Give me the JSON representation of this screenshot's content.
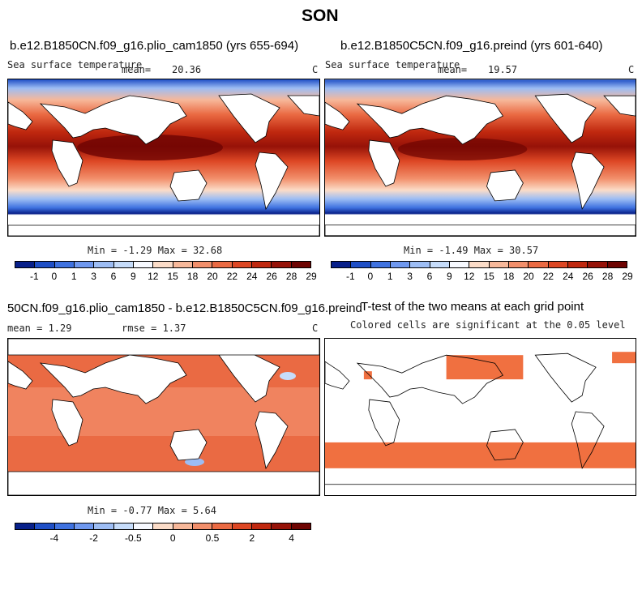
{
  "figure_title": "SON",
  "colors": {
    "sst_palette": [
      "#08208a",
      "#1f4fc6",
      "#3f72e0",
      "#6f98ef",
      "#9dbdf4",
      "#c6dcfa",
      "#f7f9ff",
      "#fbdcc8",
      "#f7b89a",
      "#f28f6b",
      "#ea6a43",
      "#dd4724",
      "#c0280f",
      "#961208",
      "#6e0402"
    ],
    "diff_palette": [
      "#08208a",
      "#1f4fc6",
      "#3f72e0",
      "#6f98ef",
      "#9dbdf4",
      "#c6dcfa",
      "#f7f9ff",
      "#fbdcc8",
      "#f7b89a",
      "#f28f6b",
      "#ea6a43",
      "#dd4724",
      "#c0280f",
      "#961208",
      "#6e0402"
    ],
    "land": "#ffffff",
    "significant": "#f07040"
  },
  "panels": [
    {
      "title": "b.e12.B1850CN.f09_g16.plio_cam1850 (yrs 655-694)",
      "left_label": "Sea surface temperature",
      "mean_label": "mean=",
      "mean_value": "20.36",
      "units": "C",
      "min_max": "Min =  -1.29 Max =  32.68",
      "colorbar_ticks": [
        "-1",
        "0",
        "1",
        "3",
        "6",
        "9",
        "12",
        "15",
        "18",
        "20",
        "22",
        "24",
        "26",
        "28",
        "29"
      ]
    },
    {
      "title": "b.e12.B1850C5CN.f09_g16.preind (yrs 601-640)",
      "left_label": "Sea surface temperature",
      "mean_label": "mean=",
      "mean_value": "19.57",
      "units": "C",
      "min_max": "Min =  -1.49 Max =  30.57",
      "colorbar_ticks": [
        "-1",
        "0",
        "1",
        "3",
        "6",
        "9",
        "12",
        "15",
        "18",
        "20",
        "22",
        "24",
        "26",
        "28",
        "29"
      ]
    },
    {
      "title": "50CN.f09_g16.plio_cam1850 - b.e12.B1850C5CN.f09_g16.preind",
      "mean_text": "mean =    1.29",
      "rmse_text": "rmse =    1.37",
      "units": "C",
      "min_max": "Min =  -0.77 Max =   5.64",
      "colorbar_ticks": [
        "-4",
        "-2",
        "-0.5",
        "0",
        "0.5",
        "2",
        "4"
      ]
    },
    {
      "title": "T-test of the two means at each grid point",
      "subtitle": "Colored cells are significant at the 0.05 level"
    }
  ]
}
